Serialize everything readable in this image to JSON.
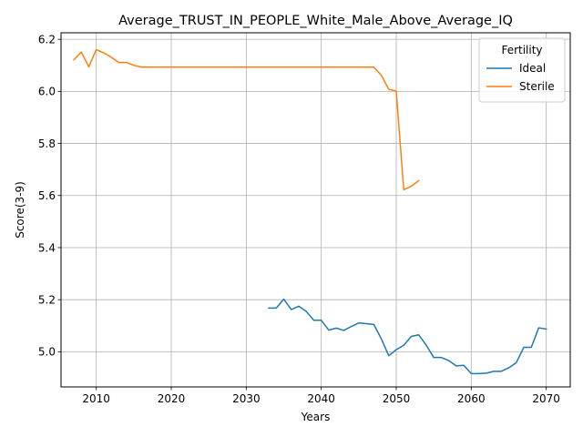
{
  "chart_data": {
    "type": "line",
    "title": "Average_TRUST_IN_PEOPLE_White_Male_Above_Average_IQ",
    "xlabel": "Years",
    "ylabel": "Score(3-9)",
    "xlim": [
      2005.3,
      2073.2
    ],
    "ylim": [
      4.865,
      6.225
    ],
    "xticks": [
      2010,
      2020,
      2030,
      2040,
      2050,
      2060,
      2070
    ],
    "yticks": [
      5.0,
      5.2,
      5.4,
      5.6,
      5.8,
      6.0,
      6.2
    ],
    "xtick_labels": [
      "2010",
      "2020",
      "2030",
      "2040",
      "2050",
      "2060",
      "2070"
    ],
    "ytick_labels": [
      "5.0",
      "5.2",
      "5.4",
      "5.6",
      "5.8",
      "6.0",
      "6.2"
    ],
    "grid": true,
    "legend": {
      "title": "Fertility",
      "placement": "top-right"
    },
    "series": [
      {
        "name": "Ideal",
        "color": "#1f77b4",
        "x": [
          2033,
          2034,
          2035,
          2036,
          2037,
          2038,
          2039,
          2040,
          2041,
          2042,
          2043,
          2044,
          2045,
          2046,
          2047,
          2048,
          2049,
          2050,
          2051,
          2052,
          2053,
          2054,
          2055,
          2056,
          2057,
          2058,
          2059,
          2060,
          2061,
          2062,
          2063,
          2064,
          2065,
          2066,
          2067,
          2068,
          2069,
          2070
        ],
        "y": [
          5.168,
          5.168,
          5.202,
          5.162,
          5.175,
          5.155,
          5.121,
          5.121,
          5.083,
          5.091,
          5.082,
          5.097,
          5.111,
          5.108,
          5.105,
          5.05,
          4.985,
          5.008,
          5.025,
          5.059,
          5.065,
          5.025,
          4.978,
          4.978,
          4.966,
          4.946,
          4.948,
          4.916,
          4.916,
          4.918,
          4.925,
          4.925,
          4.938,
          4.958,
          5.017,
          5.017,
          5.092,
          5.087
        ]
      },
      {
        "name": "Sterile",
        "color": "#ff7f0e",
        "x": [
          2007,
          2008,
          2009,
          2010,
          2011,
          2012,
          2013,
          2014,
          2015,
          2016,
          2017,
          2018,
          2019,
          2020,
          2021,
          2022,
          2023,
          2024,
          2025,
          2026,
          2027,
          2028,
          2029,
          2030,
          2031,
          2032,
          2033,
          2034,
          2035,
          2036,
          2037,
          2038,
          2039,
          2040,
          2041,
          2042,
          2043,
          2044,
          2045,
          2046,
          2047,
          2048,
          2049,
          2050,
          2051,
          2052,
          2053
        ],
        "y": [
          6.121,
          6.151,
          6.094,
          6.16,
          6.148,
          6.131,
          6.111,
          6.111,
          6.1,
          6.093,
          6.093,
          6.093,
          6.093,
          6.093,
          6.093,
          6.093,
          6.093,
          6.093,
          6.093,
          6.093,
          6.093,
          6.093,
          6.093,
          6.093,
          6.093,
          6.093,
          6.093,
          6.093,
          6.093,
          6.093,
          6.093,
          6.093,
          6.093,
          6.093,
          6.093,
          6.093,
          6.093,
          6.093,
          6.093,
          6.093,
          6.093,
          6.062,
          6.008,
          6.001,
          5.622,
          5.636,
          5.657
        ]
      }
    ]
  }
}
